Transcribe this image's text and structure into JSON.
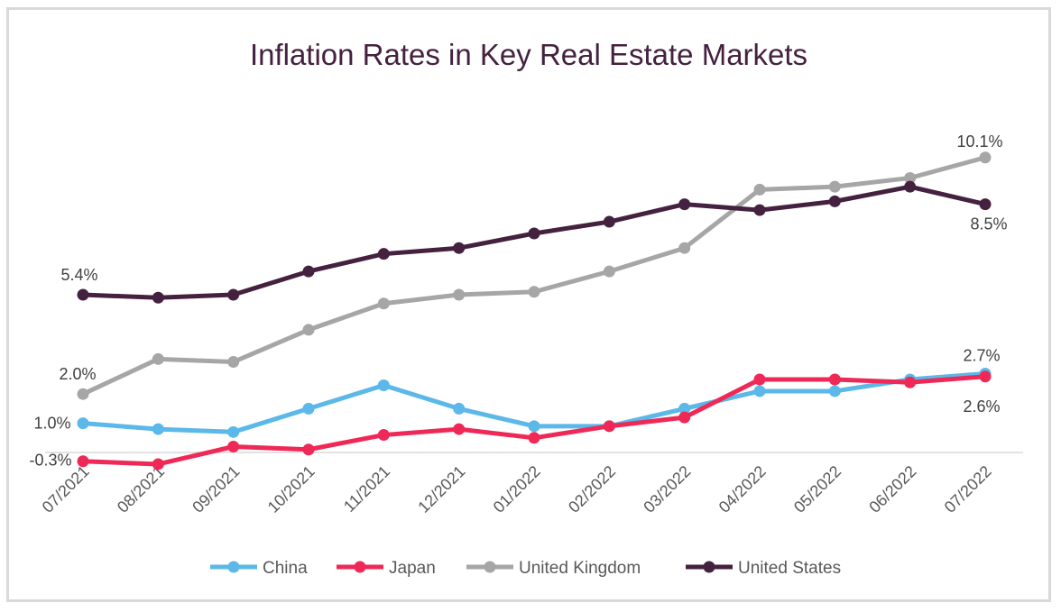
{
  "chart_data": {
    "type": "line",
    "title": "Inflation Rates in Key Real Estate Markets",
    "xlabel": "",
    "ylabel": "",
    "categories": [
      "07/2021",
      "08/2021",
      "09/2021",
      "10/2021",
      "11/2021",
      "12/2021",
      "01/2022",
      "02/2022",
      "03/2022",
      "04/2022",
      "05/2022",
      "06/2022",
      "07/2022"
    ],
    "y_unit": "%",
    "ylim": [
      -0.6,
      10.5
    ],
    "grid": false,
    "y_axis_visible": false,
    "legend_position": "bottom",
    "series": [
      {
        "name": "China",
        "color": "#5bb8e8",
        "values": [
          1.0,
          0.8,
          0.7,
          1.5,
          2.3,
          1.5,
          0.9,
          0.9,
          1.5,
          2.1,
          2.1,
          2.5,
          2.7
        ]
      },
      {
        "name": "Japan",
        "color": "#ef2957",
        "values": [
          -0.3,
          -0.4,
          0.2,
          0.1,
          0.6,
          0.8,
          0.5,
          0.9,
          1.2,
          2.5,
          2.5,
          2.4,
          2.6
        ]
      },
      {
        "name": "United Kingdom",
        "color": "#a6a6a6",
        "values": [
          2.0,
          3.2,
          3.1,
          4.2,
          5.1,
          5.4,
          5.5,
          6.2,
          7.0,
          9.0,
          9.1,
          9.4,
          10.1
        ]
      },
      {
        "name": "United States",
        "color": "#44213f",
        "values": [
          5.4,
          5.3,
          5.4,
          6.2,
          6.8,
          7.0,
          7.5,
          7.9,
          8.5,
          8.3,
          8.6,
          9.1,
          8.5
        ]
      }
    ],
    "data_labels": [
      {
        "series": "United States",
        "index": 0,
        "text": "5.4%"
      },
      {
        "series": "United Kingdom",
        "index": 0,
        "text": "2.0%"
      },
      {
        "series": "China",
        "index": 0,
        "text": "1.0%"
      },
      {
        "series": "Japan",
        "index": 0,
        "text": "-0.3%"
      },
      {
        "series": "United Kingdom",
        "index": 12,
        "text": "10.1%"
      },
      {
        "series": "United States",
        "index": 12,
        "text": "8.5%"
      },
      {
        "series": "China",
        "index": 12,
        "text": "2.7%"
      },
      {
        "series": "Japan",
        "index": 12,
        "text": "2.6%"
      }
    ]
  }
}
